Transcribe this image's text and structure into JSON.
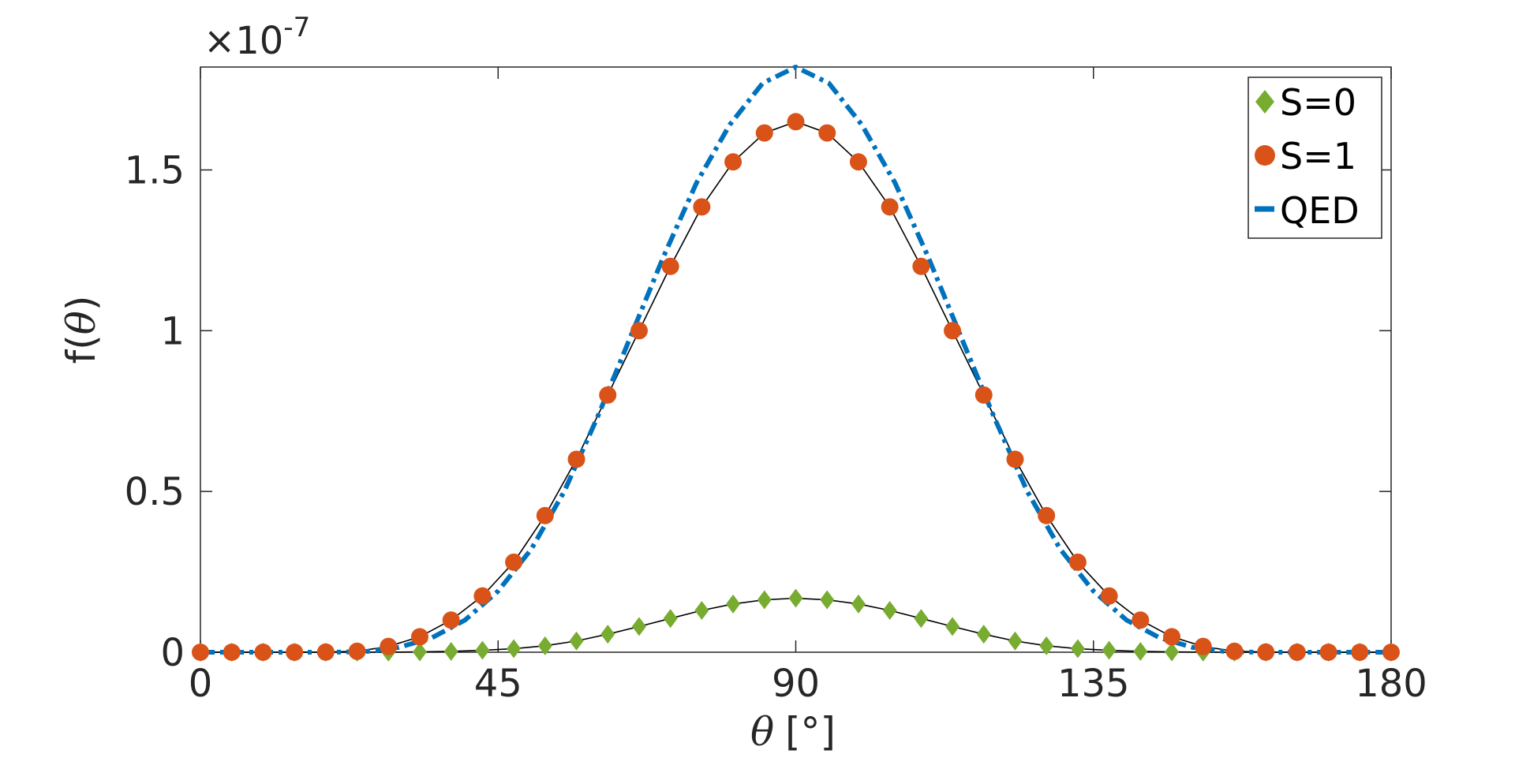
{
  "chart_data": {
    "type": "scatter",
    "xlabel_symbol": "θ",
    "xlabel_unit": "[°]",
    "ylabel_func": "f(",
    "ylabel_symbol": "θ",
    "ylabel_close": ")",
    "y_multiplier_base": "×10",
    "y_multiplier_exp": "-7",
    "xlim": [
      0,
      180
    ],
    "ylim": [
      0,
      1.82
    ],
    "x_ticks": [
      0,
      45,
      90,
      135,
      180
    ],
    "x_tick_labels": [
      "0",
      "45",
      "90",
      "135",
      "180"
    ],
    "y_ticks": [
      0,
      0.5,
      1,
      1.5
    ],
    "y_tick_labels": [
      "0",
      "0.5",
      "1",
      "1.5"
    ],
    "legend_position": "top-right",
    "grid": false,
    "series": [
      {
        "name": "S=0",
        "marker": "diamond",
        "color": "#77AC30",
        "x": [
          0,
          4.737,
          9.474,
          14.211,
          18.947,
          23.684,
          28.421,
          33.158,
          37.895,
          42.632,
          47.368,
          52.105,
          56.842,
          61.579,
          66.316,
          71.053,
          75.789,
          80.526,
          85.263,
          90,
          94.737,
          99.474,
          104.211,
          108.947,
          113.684,
          118.421,
          123.158,
          127.895,
          132.632,
          137.368,
          142.105,
          146.842,
          151.579,
          156.316,
          161.053,
          165.789,
          170.526,
          175.263,
          180
        ],
        "y": [
          0,
          0,
          0,
          0,
          0,
          0,
          0.0002,
          0.001,
          0.0025,
          0.006,
          0.011,
          0.02,
          0.035,
          0.056,
          0.08,
          0.105,
          0.13,
          0.15,
          0.163,
          0.168,
          0.163,
          0.15,
          0.13,
          0.105,
          0.08,
          0.056,
          0.035,
          0.02,
          0.011,
          0.006,
          0.0025,
          0.001,
          0.0002,
          0,
          0,
          0,
          0,
          0,
          0
        ]
      },
      {
        "name": "S=1",
        "marker": "circle",
        "color": "#D95319",
        "x": [
          0,
          4.737,
          9.474,
          14.211,
          18.947,
          23.684,
          28.421,
          33.158,
          37.895,
          42.632,
          47.368,
          52.105,
          56.842,
          61.579,
          66.316,
          71.053,
          75.789,
          80.526,
          85.263,
          90,
          94.737,
          99.474,
          104.211,
          108.947,
          113.684,
          118.421,
          123.158,
          127.895,
          132.632,
          137.368,
          142.105,
          146.842,
          151.579,
          156.316,
          161.053,
          165.789,
          170.526,
          175.263,
          180
        ],
        "y": [
          0,
          0,
          0,
          0,
          0.0005,
          0.003,
          0.018,
          0.048,
          0.1,
          0.175,
          0.28,
          0.425,
          0.6,
          0.8,
          1.0,
          1.2,
          1.385,
          1.525,
          1.615,
          1.65,
          1.615,
          1.525,
          1.385,
          1.2,
          1.0,
          0.8,
          0.6,
          0.425,
          0.28,
          0.175,
          0.1,
          0.048,
          0.018,
          0.003,
          0.0005,
          0,
          0,
          0,
          0
        ]
      },
      {
        "name": "QED",
        "line": "dash-dot",
        "color": "#0072BD",
        "x": [
          0,
          10,
          20,
          25,
          30,
          35,
          40,
          45,
          50,
          55,
          60,
          65,
          70,
          75,
          80,
          85,
          90,
          95,
          100,
          105,
          110,
          115,
          120,
          125,
          130,
          135,
          140,
          145,
          150,
          155,
          160,
          170,
          180
        ],
        "y": [
          0,
          0,
          0,
          0.002,
          0.015,
          0.045,
          0.1,
          0.19,
          0.32,
          0.5,
          0.73,
          0.98,
          1.23,
          1.46,
          1.64,
          1.77,
          1.82,
          1.77,
          1.64,
          1.46,
          1.23,
          0.98,
          0.73,
          0.5,
          0.32,
          0.19,
          0.1,
          0.045,
          0.015,
          0.002,
          0,
          0,
          0
        ]
      }
    ]
  }
}
